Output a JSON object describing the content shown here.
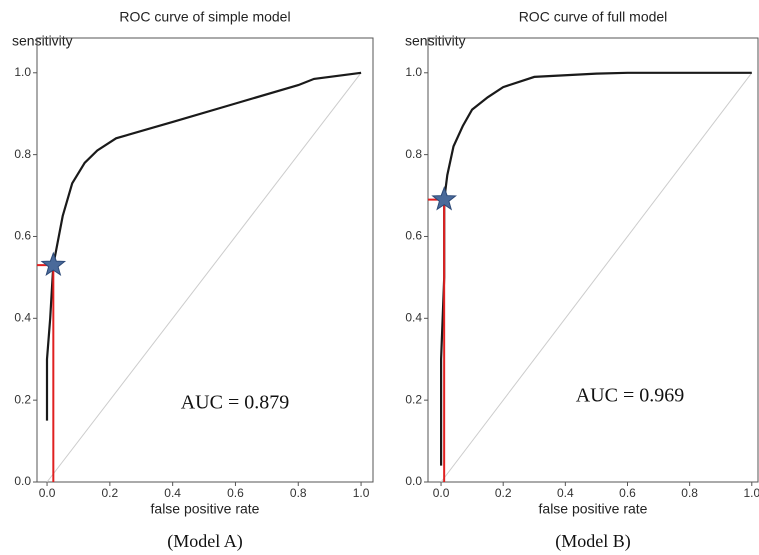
{
  "chart_data": [
    {
      "type": "line",
      "title": "ROC curve of simple model",
      "ylabel": "sensitivity",
      "xlabel": "false positive rate",
      "x": [
        0.0,
        0.0,
        0.01,
        0.02,
        0.05,
        0.08,
        0.12,
        0.16,
        0.22,
        0.4,
        0.6,
        0.8,
        0.85,
        1.0
      ],
      "values": [
        0.15,
        0.3,
        0.4,
        0.53,
        0.65,
        0.73,
        0.78,
        0.81,
        0.84,
        0.88,
        0.925,
        0.97,
        0.985,
        1.0
      ],
      "color": "#1a1a1a",
      "diagonal": true,
      "diagonal_color": "#cccccc",
      "point": {
        "x": 0.02,
        "y": 0.53,
        "color": "#4a6a9a",
        "line_color": "#e02020"
      },
      "annotation": "AUC = 0.879",
      "caption": "(Model A)",
      "xlim": [
        -0.032,
        1.038
      ],
      "ylim": [
        0,
        1.085
      ],
      "xticks": [
        {
          "value": 0,
          "label": "0.0"
        },
        {
          "value": 0.2,
          "label": "0.2"
        },
        {
          "value": 0.4,
          "label": "0.4"
        },
        {
          "value": 0.6,
          "label": "0.6"
        },
        {
          "value": 0.8,
          "label": "0.8"
        },
        {
          "value": 1,
          "label": "1.0"
        }
      ],
      "yticks": [
        {
          "value": 0,
          "label": "0.0"
        },
        {
          "value": 0.2,
          "label": "0.2"
        },
        {
          "value": 0.4,
          "label": "0.4"
        },
        {
          "value": 0.6,
          "label": "0.6"
        },
        {
          "value": 0.8,
          "label": "0.8"
        },
        {
          "value": 1,
          "label": "1.0"
        }
      ]
    },
    {
      "type": "line",
      "title": "ROC curve of full model",
      "ylabel": "sensitivity",
      "xlabel": "false positive rate",
      "x": [
        0.0,
        0.0,
        0.01,
        0.01,
        0.02,
        0.04,
        0.07,
        0.1,
        0.15,
        0.2,
        0.3,
        0.5,
        0.6,
        1.0
      ],
      "values": [
        0.04,
        0.3,
        0.5,
        0.69,
        0.75,
        0.82,
        0.87,
        0.91,
        0.94,
        0.965,
        0.99,
        0.998,
        1.0,
        1.0
      ],
      "color": "#1a1a1a",
      "diagonal": true,
      "diagonal_color": "#cccccc",
      "point": {
        "x": 0.01,
        "y": 0.69,
        "color": "#4a6a9a",
        "line_color": "#e02020"
      },
      "annotation": "AUC = 0.969",
      "caption": "(Model B)",
      "xlim": [
        -0.042,
        1.02
      ],
      "ylim": [
        0,
        1.085
      ],
      "xticks": [
        {
          "value": 0,
          "label": "0.0"
        },
        {
          "value": 0.2,
          "label": "0.2"
        },
        {
          "value": 0.4,
          "label": "0.4"
        },
        {
          "value": 0.6,
          "label": "0.6"
        },
        {
          "value": 0.8,
          "label": "0.8"
        },
        {
          "value": 1,
          "label": "1.0"
        }
      ],
      "yticks": [
        {
          "value": 0,
          "label": "0.0"
        },
        {
          "value": 0.2,
          "label": "0.2"
        },
        {
          "value": 0.4,
          "label": "0.4"
        },
        {
          "value": 0.6,
          "label": "0.6"
        },
        {
          "value": 0.8,
          "label": "0.8"
        },
        {
          "value": 1,
          "label": "1.0"
        }
      ]
    }
  ]
}
